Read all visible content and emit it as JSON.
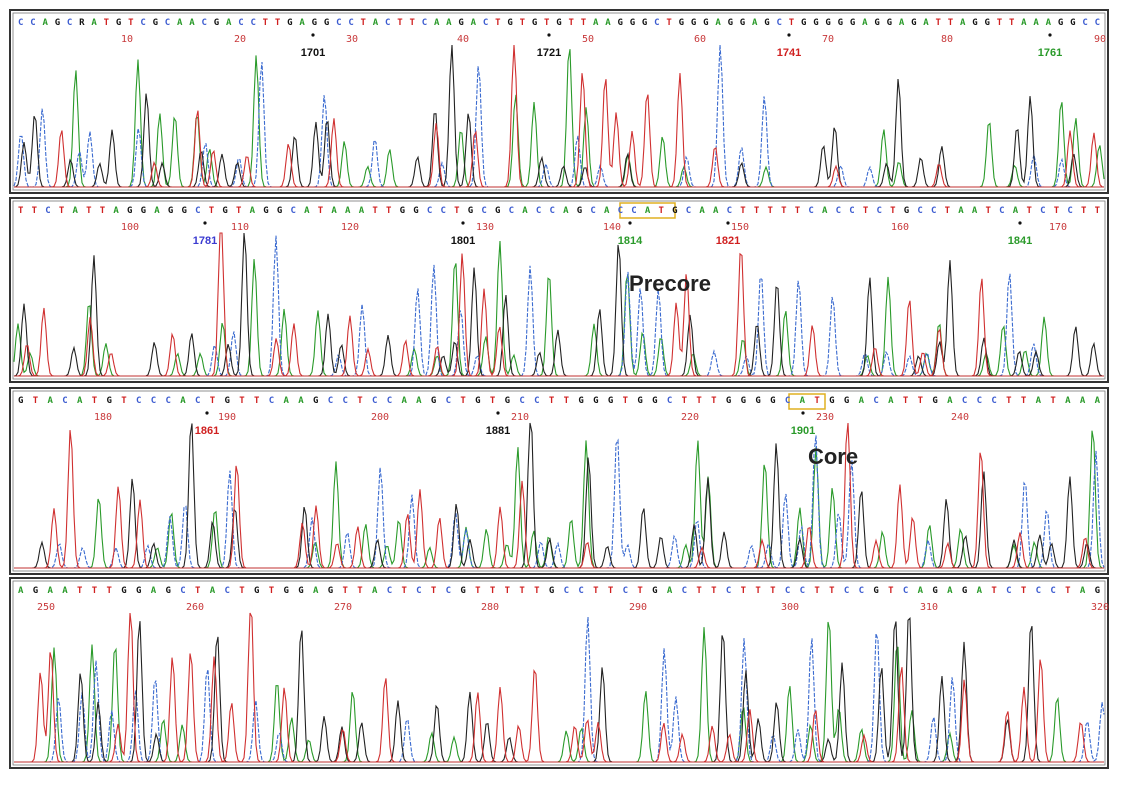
{
  "panels": [
    {
      "sequence": "CCAGCRATGTCGCAACGACCTTGAGGCCTACTTCAAGACTGTGTGTTAAGGGCTGGGAGGAGCTGGGGGAGGAGATTAGGTTAAAGGCC",
      "positions": [
        "10",
        "20",
        "30",
        "40",
        "50",
        "60",
        "70",
        "80",
        "90"
      ],
      "markers": [
        {
          "label": "1701",
          "color": "#111111"
        },
        {
          "label": "1721",
          "color": "#111111"
        },
        {
          "label": "1741",
          "color": "#d02020"
        },
        {
          "label": "1761",
          "color": "#2a9a2a"
        }
      ]
    },
    {
      "sequence": "TTCTATTAGGAGGCTGTAGGCATAAATTGGCCTGCGCACCAGCACCATGCAACTTTTTCACCTCTGCCTAATCATCTCTT",
      "positions": [
        "100",
        "110",
        "120",
        "130",
        "140",
        "150",
        "160",
        "170"
      ],
      "markers": [
        {
          "label": "1781",
          "color": "#3b3bd0"
        },
        {
          "label": "1801",
          "color": "#111111"
        },
        {
          "label": "1814",
          "color": "#2a9a2a"
        },
        {
          "label": "1821",
          "color": "#d02020"
        },
        {
          "label": "1841",
          "color": "#2a9a2a"
        }
      ],
      "annotation": "Precore"
    },
    {
      "sequence": "GTACATGTCCCACTGTTCAAGCCTCCAAGCTGTGCCTTGGGTGGCTTTGGGGCATGGACATTGACCCTTATAAA",
      "positions": [
        "180",
        "190",
        "200",
        "210",
        "220",
        "230",
        "240"
      ],
      "markers": [
        {
          "label": "1861",
          "color": "#d02020"
        },
        {
          "label": "1881",
          "color": "#111111"
        },
        {
          "label": "1901",
          "color": "#2a9a2a"
        }
      ],
      "annotation": "Core"
    },
    {
      "sequence": "AGAATTTGGAGCTACTGTGGAGTTACTCTCGTTTTTGCCTTCTGACTTCTTTCCTTCCGTCAGAGATCTCCTAG",
      "positions": [
        "250",
        "260",
        "270",
        "280",
        "290",
        "300",
        "310",
        "320"
      ],
      "markers": []
    }
  ]
}
